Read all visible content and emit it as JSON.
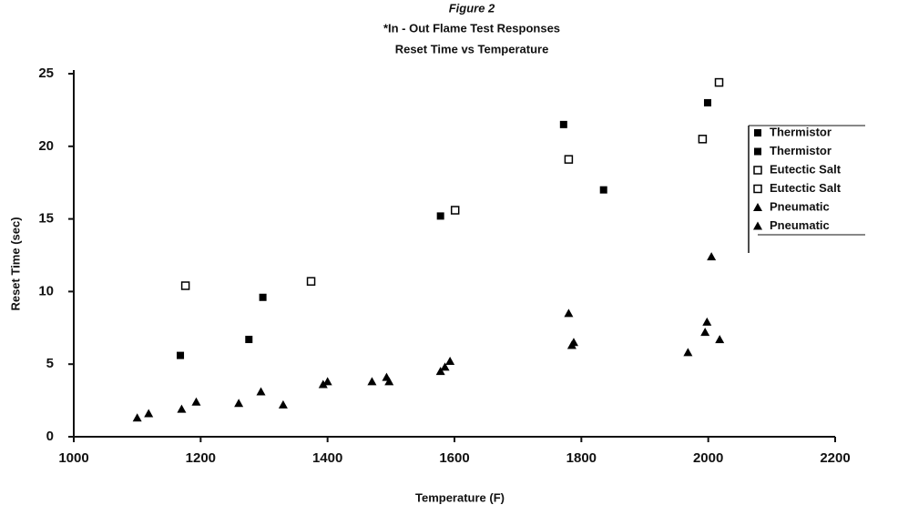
{
  "chart_data": {
    "type": "scatter",
    "title": "Figure 2",
    "subtitle": "*In - Out Flame Test Responses",
    "subtitle2": "Reset Time vs Temperature",
    "x_label": "Temperature (F)",
    "y_label": "Reset Time (sec)",
    "xlim": [
      1000,
      2200
    ],
    "xticks": [
      1000,
      1200,
      1400,
      1600,
      1800,
      2000,
      2200
    ],
    "ylim": [
      0,
      25
    ],
    "yticks": [
      0,
      5,
      10,
      15,
      20,
      25
    ],
    "grid": false,
    "legend": "right",
    "series": [
      {
        "name": "Thermistor",
        "marker": "filled-square",
        "color": "#000000",
        "x": [
          1168,
          1276,
          1298,
          1578
        ],
        "values": [
          5.6,
          6.7,
          9.6,
          15.2
        ]
      },
      {
        "name": "Thermistor",
        "marker": "filled-square",
        "color": "#000000",
        "x": [
          1772,
          1835,
          1999
        ],
        "values": [
          21.5,
          17.0,
          23.0
        ]
      },
      {
        "name": "Eutectic Salt",
        "marker": "open-square",
        "color": "#000000",
        "x": [
          1176,
          1374,
          1601
        ],
        "values": [
          10.4,
          10.7,
          15.6
        ]
      },
      {
        "name": "Eutectic Salt",
        "marker": "open-square",
        "color": "#000000",
        "x": [
          1780,
          1991,
          2017
        ],
        "values": [
          19.1,
          20.5,
          24.4
        ]
      },
      {
        "name": "Pneumatic",
        "marker": "triangle",
        "color": "#000000",
        "x": [
          1100,
          1118,
          1170,
          1193,
          1260,
          1295,
          1330,
          1393,
          1400,
          1470,
          1493,
          1497
        ],
        "values": [
          1.3,
          1.6,
          1.9,
          2.4,
          2.3,
          3.1,
          2.2,
          3.6,
          3.8,
          3.8,
          4.1,
          3.8
        ]
      },
      {
        "name": "Pneumatic",
        "marker": "triangle",
        "color": "#000000",
        "x": [
          1578,
          1585,
          1593,
          1780,
          1785,
          1788,
          1968,
          1995,
          1998,
          2005,
          2018
        ],
        "values": [
          4.5,
          4.8,
          5.2,
          8.5,
          6.3,
          6.5,
          5.8,
          7.2,
          7.9,
          12.4,
          6.7
        ]
      }
    ]
  }
}
